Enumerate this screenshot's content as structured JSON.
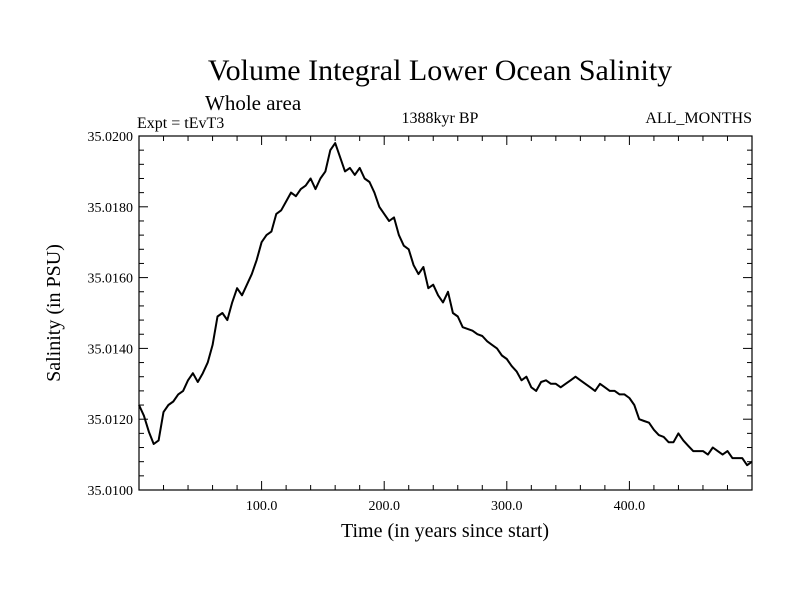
{
  "chart_data": {
    "type": "line",
    "title": "Volume Integral Lower Ocean Salinity",
    "subtitle": "Whole area",
    "experiment_label": "Expt = tEvT3",
    "period_label": "1388kyr BP",
    "months_label": "ALL_MONTHS",
    "xlabel": "Time (in years since start)",
    "ylabel": "Salinity (in PSU)",
    "xlim": [
      0,
      500
    ],
    "ylim": [
      35.01,
      35.02
    ],
    "x_ticks": [
      100,
      200,
      300,
      400
    ],
    "x_tick_labels": [
      "100.0",
      "200.0",
      "300.0",
      "400.0"
    ],
    "y_ticks": [
      35.01,
      35.012,
      35.014,
      35.016,
      35.018,
      35.02
    ],
    "y_tick_labels": [
      "35.0100",
      "35.0120",
      "35.0140",
      "35.0160",
      "35.0180",
      "35.0200"
    ],
    "grid": false,
    "series": [
      {
        "name": "Salinity",
        "x": [
          0,
          4,
          8,
          12,
          16,
          20,
          24,
          28,
          32,
          36,
          40,
          44,
          48,
          52,
          56,
          60,
          64,
          68,
          72,
          76,
          80,
          84,
          88,
          92,
          96,
          100,
          104,
          108,
          112,
          116,
          120,
          124,
          128,
          132,
          136,
          140,
          144,
          148,
          152,
          156,
          160,
          164,
          168,
          172,
          176,
          180,
          184,
          188,
          192,
          196,
          200,
          204,
          208,
          212,
          216,
          220,
          224,
          228,
          232,
          236,
          240,
          244,
          248,
          252,
          256,
          260,
          264,
          268,
          272,
          276,
          280,
          284,
          288,
          292,
          296,
          300,
          304,
          308,
          312,
          316,
          320,
          324,
          328,
          332,
          336,
          340,
          344,
          348,
          352,
          356,
          360,
          364,
          368,
          372,
          376,
          380,
          384,
          388,
          392,
          396,
          400,
          404,
          408,
          412,
          416,
          420,
          424,
          428,
          432,
          436,
          440,
          444,
          448,
          452,
          456,
          460,
          464,
          468,
          472,
          476,
          480,
          484,
          488,
          492,
          496,
          500
        ],
        "values": [
          35.0124,
          35.0121,
          35.01165,
          35.0113,
          35.0114,
          35.0122,
          35.0124,
          35.0125,
          35.0127,
          35.0128,
          35.0131,
          35.0133,
          35.01305,
          35.0133,
          35.0136,
          35.0141,
          35.0149,
          35.015,
          35.0148,
          35.0153,
          35.0157,
          35.0155,
          35.0158,
          35.0161,
          35.0165,
          35.017,
          35.0172,
          35.0173,
          35.0178,
          35.0179,
          35.01815,
          35.0184,
          35.0183,
          35.0185,
          35.0186,
          35.0188,
          35.0185,
          35.0188,
          35.019,
          35.0196,
          35.0198,
          35.0194,
          35.019,
          35.0191,
          35.0189,
          35.0191,
          35.0188,
          35.0187,
          35.0184,
          35.018,
          35.0178,
          35.0176,
          35.0177,
          35.0172,
          35.0169,
          35.0168,
          35.01635,
          35.0161,
          35.0163,
          35.0157,
          35.0158,
          35.0155,
          35.0153,
          35.0156,
          35.015,
          35.0149,
          35.0146,
          35.01455,
          35.0145,
          35.0144,
          35.01435,
          35.0142,
          35.0141,
          35.014,
          35.0138,
          35.0137,
          35.0135,
          35.01335,
          35.0131,
          35.0132,
          35.0129,
          35.0128,
          35.01305,
          35.0131,
          35.013,
          35.013,
          35.0129,
          35.013,
          35.0131,
          35.0132,
          35.0131,
          35.013,
          35.0129,
          35.0128,
          35.013,
          35.0129,
          35.0128,
          35.0128,
          35.0127,
          35.0127,
          35.0126,
          35.0124,
          35.012,
          35.01195,
          35.0119,
          35.0117,
          35.01155,
          35.0115,
          35.01135,
          35.01135,
          35.0116,
          35.0114,
          35.01125,
          35.0111,
          35.0111,
          35.0111,
          35.011,
          35.0112,
          35.0111,
          35.011,
          35.0111,
          35.0109,
          35.0109,
          35.0109,
          35.0107,
          35.0108
        ]
      }
    ]
  }
}
